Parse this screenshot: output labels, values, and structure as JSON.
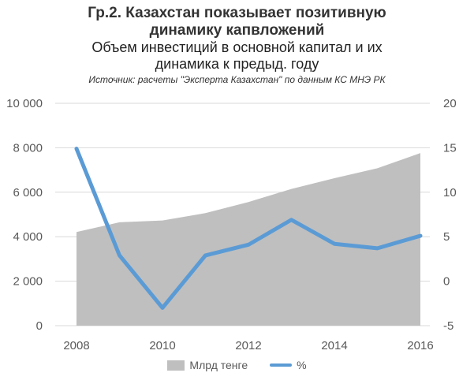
{
  "header": {
    "title_line1": "Гр.2. Казахстан показывает позитивную",
    "title_line2": "динамику капвложений",
    "subtitle_line1": "Объем инвестиций в основной капитал и их",
    "subtitle_line2": "динамика к предыд. году",
    "source": "Источник: расчеты \"Эксперта Казахстан\" по данным КС МНЭ РК"
  },
  "legend": {
    "area_label": "Млрд тенге",
    "line_label": "%"
  },
  "colors": {
    "area": "#bfbfbf",
    "line": "#5b9bd5",
    "tick_text": "#595959"
  },
  "chart_data": {
    "type": "area",
    "x": [
      2008,
      2009,
      2010,
      2011,
      2012,
      2013,
      2014,
      2015,
      2016
    ],
    "x_tick_labels": [
      "2008",
      "2010",
      "2012",
      "2014",
      "2016"
    ],
    "series": [
      {
        "name": "Млрд тенге",
        "type": "area",
        "axis": "left",
        "values": [
          4210,
          4650,
          4730,
          5060,
          5560,
          6150,
          6630,
          7080,
          7760
        ]
      },
      {
        "name": "%",
        "type": "line",
        "axis": "right",
        "values": [
          14.9,
          2.9,
          -3.0,
          2.9,
          4.1,
          6.9,
          4.2,
          3.7,
          5.1
        ]
      }
    ],
    "y_left": {
      "ylim": [
        0,
        10000
      ],
      "ticks": [
        0,
        2000,
        4000,
        6000,
        8000,
        10000
      ],
      "tick_labels": [
        "0",
        "2 000",
        "4 000",
        "6 000",
        "8 000",
        "10 000"
      ]
    },
    "y_right": {
      "ylim": [
        -5,
        20
      ],
      "ticks": [
        -5,
        0,
        5,
        10,
        15,
        20
      ],
      "tick_labels": [
        "-5",
        "0",
        "5",
        "10",
        "15",
        "20"
      ]
    },
    "grid": true,
    "legend_position": "bottom"
  }
}
